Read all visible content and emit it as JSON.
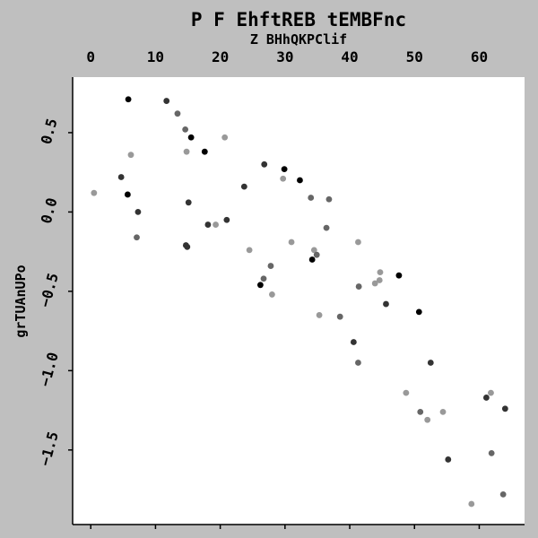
{
  "chart_data": {
    "type": "scatter",
    "title": "P  F EhftREB tEMBFnc",
    "xlabel": "Z BHhQKPClif",
    "ylabel": "grTUAnUPo",
    "xlim": [
      -2.8,
      67
    ],
    "ylim": [
      -1.97,
      0.85
    ],
    "x_ticks": [
      0,
      10,
      20,
      30,
      40,
      50,
      60
    ],
    "x_tick_labels": [
      "0",
      "10",
      "20",
      "30",
      "40",
      "50",
      "60"
    ],
    "y_ticks": [
      0.5,
      0.0,
      -0.5,
      -1.0,
      -1.5
    ],
    "y_tick_labels": [
      "0.5",
      "0.0",
      "−0.5",
      "−1.0",
      "−1.5"
    ],
    "x_axis_position": "top",
    "grid": false,
    "legend": "none",
    "colors": {
      "background": "#bfbfbf",
      "plot_background": "#ffffff",
      "point_shades": [
        "#000000",
        "#333333",
        "#666666",
        "#999999"
      ]
    },
    "points": [
      {
        "x": 0.5,
        "y": 0.12,
        "shade": 3
      },
      {
        "x": 4.7,
        "y": 0.22,
        "shade": 1
      },
      {
        "x": 5.7,
        "y": 0.11,
        "shade": 0
      },
      {
        "x": 5.8,
        "y": 0.71,
        "shade": 0
      },
      {
        "x": 6.2,
        "y": 0.36,
        "shade": 3
      },
      {
        "x": 7.1,
        "y": -0.16,
        "shade": 2
      },
      {
        "x": 7.3,
        "y": 0.0,
        "shade": 1
      },
      {
        "x": 11.7,
        "y": 0.7,
        "shade": 1
      },
      {
        "x": 13.4,
        "y": 0.62,
        "shade": 2
      },
      {
        "x": 14.6,
        "y": 0.52,
        "shade": 2
      },
      {
        "x": 14.7,
        "y": -0.21,
        "shade": 1
      },
      {
        "x": 14.8,
        "y": 0.38,
        "shade": 3
      },
      {
        "x": 14.9,
        "y": -0.22,
        "shade": 1
      },
      {
        "x": 15.1,
        "y": 0.06,
        "shade": 1
      },
      {
        "x": 15.5,
        "y": 0.47,
        "shade": 0
      },
      {
        "x": 17.6,
        "y": 0.38,
        "shade": 0
      },
      {
        "x": 18.1,
        "y": -0.08,
        "shade": 1
      },
      {
        "x": 19.3,
        "y": -0.08,
        "shade": 3
      },
      {
        "x": 20.7,
        "y": 0.47,
        "shade": 3
      },
      {
        "x": 21.0,
        "y": -0.05,
        "shade": 1
      },
      {
        "x": 23.7,
        "y": 0.16,
        "shade": 1
      },
      {
        "x": 24.5,
        "y": -0.24,
        "shade": 3
      },
      {
        "x": 26.2,
        "y": -0.46,
        "shade": 0
      },
      {
        "x": 26.7,
        "y": -0.42,
        "shade": 2
      },
      {
        "x": 26.8,
        "y": 0.3,
        "shade": 1
      },
      {
        "x": 27.8,
        "y": -0.34,
        "shade": 2
      },
      {
        "x": 28.0,
        "y": -0.52,
        "shade": 3
      },
      {
        "x": 29.7,
        "y": 0.21,
        "shade": 3
      },
      {
        "x": 29.9,
        "y": 0.27,
        "shade": 0
      },
      {
        "x": 31.0,
        "y": -0.19,
        "shade": 3
      },
      {
        "x": 32.3,
        "y": 0.2,
        "shade": 0
      },
      {
        "x": 34.0,
        "y": 0.09,
        "shade": 2
      },
      {
        "x": 34.2,
        "y": -0.3,
        "shade": 0
      },
      {
        "x": 34.5,
        "y": -0.24,
        "shade": 3
      },
      {
        "x": 34.9,
        "y": -0.27,
        "shade": 2
      },
      {
        "x": 35.3,
        "y": -0.65,
        "shade": 3
      },
      {
        "x": 36.4,
        "y": -0.1,
        "shade": 2
      },
      {
        "x": 36.8,
        "y": 0.08,
        "shade": 2
      },
      {
        "x": 38.5,
        "y": -0.66,
        "shade": 2
      },
      {
        "x": 40.6,
        "y": -0.82,
        "shade": 1
      },
      {
        "x": 41.3,
        "y": -0.95,
        "shade": 2
      },
      {
        "x": 41.3,
        "y": -0.19,
        "shade": 3
      },
      {
        "x": 41.4,
        "y": -0.47,
        "shade": 2
      },
      {
        "x": 43.9,
        "y": -0.45,
        "shade": 3
      },
      {
        "x": 44.6,
        "y": -0.43,
        "shade": 3
      },
      {
        "x": 44.7,
        "y": -0.38,
        "shade": 3
      },
      {
        "x": 45.6,
        "y": -0.58,
        "shade": 1
      },
      {
        "x": 47.6,
        "y": -0.4,
        "shade": 0
      },
      {
        "x": 48.7,
        "y": -1.14,
        "shade": 3
      },
      {
        "x": 50.7,
        "y": -0.63,
        "shade": 0
      },
      {
        "x": 50.9,
        "y": -1.26,
        "shade": 2
      },
      {
        "x": 52.0,
        "y": -1.31,
        "shade": 3
      },
      {
        "x": 52.5,
        "y": -0.95,
        "shade": 1
      },
      {
        "x": 54.4,
        "y": -1.26,
        "shade": 3
      },
      {
        "x": 55.2,
        "y": -1.56,
        "shade": 1
      },
      {
        "x": 58.8,
        "y": -1.84,
        "shade": 3
      },
      {
        "x": 61.1,
        "y": -1.17,
        "shade": 1
      },
      {
        "x": 61.8,
        "y": -1.14,
        "shade": 3
      },
      {
        "x": 61.9,
        "y": -1.52,
        "shade": 2
      },
      {
        "x": 63.7,
        "y": -1.78,
        "shade": 2
      },
      {
        "x": 64.0,
        "y": -1.24,
        "shade": 1
      }
    ]
  }
}
